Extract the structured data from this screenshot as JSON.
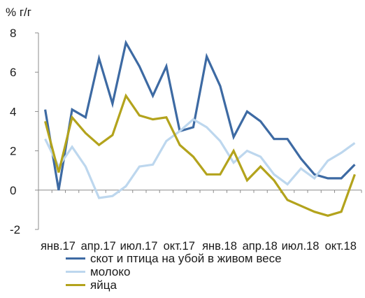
{
  "unit_label": "% г/г",
  "chart_data": {
    "type": "line",
    "title": "",
    "xlabel": "",
    "ylabel": "% г/г",
    "ylim": [
      -2,
      8
    ],
    "yticks": [
      "-2",
      "0",
      "2",
      "4",
      "6",
      "8"
    ],
    "x": [
      "янв.17",
      "фев.17",
      "мар.17",
      "апр.17",
      "май.17",
      "июн.17",
      "июл.17",
      "авг.17",
      "сен.17",
      "окт.17",
      "ноя.17",
      "дек.17",
      "янв.18",
      "фев.18",
      "мар.18",
      "апр.18",
      "май.18",
      "июн.18",
      "июл.18",
      "авг.18",
      "сен.18",
      "окт.18",
      "ноя.18",
      "дек.18"
    ],
    "xtick_labels": [
      "янв.17",
      "апр.17",
      "июл.17",
      "окт.17",
      "янв.18",
      "апр.18",
      "июл.18",
      "окт.18"
    ],
    "legend_position": "bottom",
    "grid": false,
    "series": [
      {
        "name": "скот и птица на убой в живом весе",
        "color": "#3d6aa3",
        "values": [
          4.1,
          0.0,
          4.1,
          3.7,
          6.7,
          4.4,
          7.5,
          6.3,
          4.8,
          6.3,
          3.0,
          3.2,
          6.8,
          5.3,
          2.7,
          4.0,
          3.5,
          2.6,
          2.6,
          1.6,
          0.8,
          0.6,
          0.6,
          1.3
        ]
      },
      {
        "name": "молоко",
        "color": "#bdd7ee",
        "values": [
          2.6,
          1.2,
          2.2,
          1.2,
          -0.4,
          -0.3,
          0.2,
          1.2,
          1.3,
          2.5,
          3.0,
          3.6,
          3.2,
          2.5,
          1.4,
          2.0,
          1.7,
          0.8,
          0.3,
          1.1,
          0.6,
          1.5,
          1.9,
          2.4
        ]
      },
      {
        "name": "яйца",
        "color": "#b3a31c",
        "values": [
          3.5,
          0.9,
          3.7,
          2.9,
          2.3,
          2.8,
          4.8,
          3.8,
          3.6,
          3.7,
          2.3,
          1.7,
          0.8,
          0.8,
          2.0,
          0.5,
          1.2,
          0.5,
          -0.5,
          -0.8,
          -1.1,
          -1.3,
          -1.1,
          0.8
        ]
      }
    ]
  }
}
